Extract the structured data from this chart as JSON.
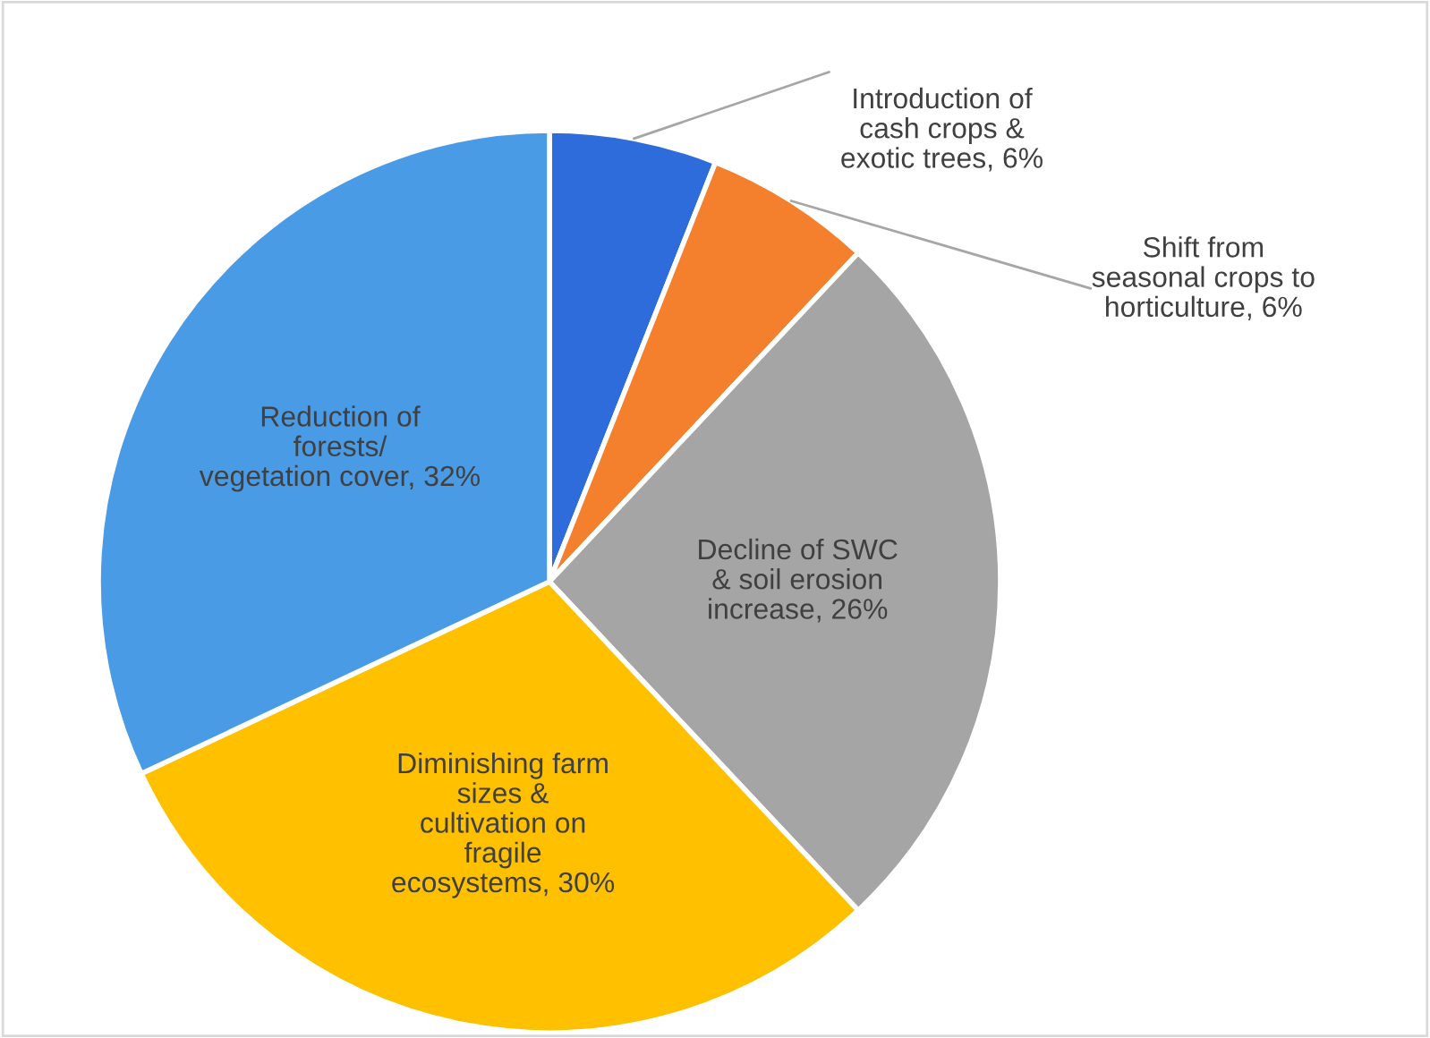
{
  "chart_data": {
    "type": "pie",
    "categories": [
      "Introduction of\ncash crops &\nexotic trees",
      "Shift from\nseasonal crops to\nhorticulture",
      "Decline of SWC\n& soil erosion\nincrease",
      "Diminishing farm\nsizes &\ncultivation on\nfragile\necosystems",
      "Reduction of\nforests/\nvegetation cover"
    ],
    "values": [
      6,
      6,
      26,
      30,
      32
    ],
    "colors": [
      "#2e6cdb",
      "#f47f2c",
      "#a5a5a5",
      "#ffc000",
      "#4a9be6"
    ],
    "value_labels": [
      "6%",
      "6%",
      "26%",
      "30%",
      "32%"
    ]
  }
}
